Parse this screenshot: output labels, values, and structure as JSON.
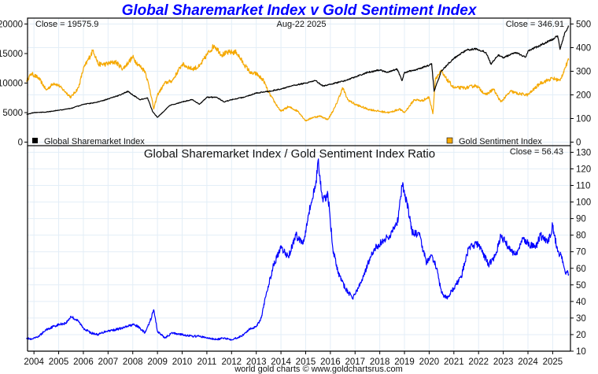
{
  "chart_data": [
    {
      "type": "line",
      "title": "Global Sharemarket Index v Gold Sentiment Index",
      "date_label": "Aug-22  2025",
      "left_close_label": "Close = 19575.9",
      "right_close_label": "Close = 346.91",
      "left_axis": {
        "ticks": [
          "0",
          "5000",
          "10000",
          "15000",
          "20000"
        ],
        "values": [
          0,
          5000,
          10000,
          15000,
          20000
        ],
        "range": [
          -600,
          21000
        ]
      },
      "right_axis": {
        "ticks": [
          "0",
          "100",
          "200",
          "300",
          "400",
          "500"
        ],
        "values": [
          0,
          100,
          200,
          300,
          400,
          500
        ],
        "range": [
          -15,
          525
        ]
      },
      "legend": [
        {
          "name": "Global Sharemarket Index",
          "color": "#000000",
          "placement": "bottom-left"
        },
        {
          "name": "Gold Sentiment Index",
          "color": "#f5a800",
          "placement": "bottom-right"
        }
      ],
      "series": [
        {
          "name": "Global Sharemarket Index",
          "axis": "left",
          "color": "#000000",
          "x": [
            2003.7,
            2004.0,
            2004.5,
            2005.0,
            2005.5,
            2006.0,
            2006.5,
            2007.0,
            2007.5,
            2007.8,
            2008.0,
            2008.3,
            2008.6,
            2008.8,
            2009.0,
            2009.2,
            2009.5,
            2010.0,
            2010.4,
            2010.7,
            2011.0,
            2011.4,
            2011.7,
            2012.0,
            2012.5,
            2013.0,
            2013.5,
            2014.0,
            2014.5,
            2015.0,
            2015.4,
            2015.7,
            2016.0,
            2016.5,
            2017.0,
            2017.5,
            2018.0,
            2018.3,
            2018.7,
            2018.9,
            2019.0,
            2019.5,
            2020.0,
            2020.1,
            2020.2,
            2020.5,
            2021.0,
            2021.5,
            2021.9,
            2022.3,
            2022.5,
            2022.8,
            2023.0,
            2023.5,
            2023.9,
            2024.0,
            2024.5,
            2025.0,
            2025.2,
            2025.3,
            2025.5,
            2025.65
          ],
          "y": [
            4700,
            5000,
            5100,
            5400,
            5700,
            6400,
            6700,
            7300,
            8000,
            8600,
            8000,
            7200,
            7500,
            5200,
            4200,
            5000,
            6200,
            6800,
            7200,
            6400,
            7600,
            7600,
            6800,
            7200,
            7600,
            8300,
            8600,
            9000,
            9600,
            10000,
            10400,
            9500,
            9800,
            10300,
            11000,
            11800,
            12200,
            11800,
            12400,
            10400,
            11800,
            12300,
            13000,
            13300,
            8600,
            12100,
            14200,
            15600,
            15800,
            15200,
            13200,
            14800,
            14300,
            15200,
            14400,
            15400,
            16400,
            17400,
            18000,
            15700,
            18600,
            19575.9
          ]
        },
        {
          "name": "Gold Sentiment Index",
          "axis": "right",
          "color": "#f5a800",
          "x": [
            2003.7,
            2003.9,
            2004.2,
            2004.5,
            2004.8,
            2005.0,
            2005.3,
            2005.5,
            2005.8,
            2006.0,
            2006.4,
            2006.6,
            2006.9,
            2007.3,
            2007.6,
            2008.0,
            2008.2,
            2008.5,
            2008.7,
            2008.85,
            2009.0,
            2009.3,
            2009.6,
            2010.0,
            2010.4,
            2010.7,
            2011.0,
            2011.3,
            2011.6,
            2011.9,
            2012.2,
            2012.5,
            2012.8,
            2013.0,
            2013.3,
            2013.5,
            2013.8,
            2014.0,
            2014.3,
            2014.7,
            2015.0,
            2015.3,
            2015.6,
            2015.9,
            2016.2,
            2016.5,
            2016.7,
            2017.0,
            2017.5,
            2018.0,
            2018.4,
            2018.8,
            2019.0,
            2019.4,
            2019.7,
            2020.0,
            2020.15,
            2020.25,
            2020.5,
            2020.6,
            2021.0,
            2021.5,
            2021.9,
            2022.3,
            2022.6,
            2022.9,
            2023.3,
            2023.6,
            2024.0,
            2024.5,
            2025.0,
            2025.3,
            2025.5,
            2025.65
          ],
          "y": [
            260,
            290,
            270,
            220,
            250,
            240,
            210,
            190,
            230,
            310,
            390,
            330,
            330,
            340,
            310,
            360,
            330,
            300,
            220,
            140,
            200,
            250,
            260,
            330,
            310,
            320,
            370,
            410,
            370,
            380,
            380,
            330,
            290,
            290,
            260,
            210,
            160,
            130,
            150,
            130,
            90,
            105,
            110,
            95,
            150,
            230,
            180,
            160,
            140,
            130,
            125,
            140,
            125,
            180,
            175,
            190,
            120,
            270,
            300,
            280,
            230,
            230,
            240,
            200,
            225,
            170,
            215,
            205,
            200,
            250,
            270,
            260,
            315,
            346.91
          ]
        },
        {
          "name": "Global Sharemarket Index / Gold Sentiment Index Ratio",
          "axis": "ratio",
          "color": "#0000ff",
          "subtitle": "Global Sharemarket Index  /  Gold Sentiment Index Ratio",
          "close_label": "Close = 56.43",
          "ratio_axis": {
            "ticks": [
              "10",
              "20",
              "30",
              "40",
              "50",
              "60",
              "70",
              "80",
              "90",
              "100",
              "110",
              "120",
              "130"
            ],
            "values": [
              10,
              20,
              30,
              40,
              50,
              60,
              70,
              80,
              90,
              100,
              110,
              120,
              130
            ],
            "range": [
              10,
              134
            ]
          },
          "x": [
            2003.7,
            2003.9,
            2004.2,
            2004.5,
            2004.8,
            2005.0,
            2005.3,
            2005.5,
            2005.8,
            2006.0,
            2006.3,
            2006.6,
            2006.9,
            2007.3,
            2007.6,
            2008.0,
            2008.2,
            2008.5,
            2008.7,
            2008.85,
            2009.0,
            2009.3,
            2009.6,
            2010.0,
            2010.4,
            2010.7,
            2011.0,
            2011.4,
            2011.7,
            2012.0,
            2012.4,
            2012.7,
            2013.0,
            2013.2,
            2013.4,
            2013.7,
            2014.0,
            2014.3,
            2014.6,
            2014.9,
            2015.1,
            2015.4,
            2015.5,
            2015.7,
            2015.9,
            2016.1,
            2016.3,
            2016.6,
            2016.9,
            2017.2,
            2017.5,
            2017.8,
            2018.1,
            2018.4,
            2018.6,
            2018.75,
            2018.9,
            2019.1,
            2019.3,
            2019.6,
            2019.9,
            2020.1,
            2020.3,
            2020.5,
            2020.7,
            2021.0,
            2021.3,
            2021.6,
            2021.9,
            2022.1,
            2022.4,
            2022.7,
            2022.9,
            2023.2,
            2023.5,
            2023.8,
            2024.0,
            2024.3,
            2024.5,
            2024.8,
            2025.0,
            2025.2,
            2025.35,
            2025.5,
            2025.65
          ],
          "y": [
            18,
            17,
            19,
            23,
            25,
            26,
            27,
            31,
            28,
            24,
            21,
            20,
            22,
            23,
            24,
            26,
            25,
            21,
            28,
            35,
            22,
            18,
            21,
            20,
            19,
            19,
            18,
            17,
            18,
            17,
            19,
            23,
            25,
            30,
            44,
            62,
            72,
            67,
            80,
            75,
            92,
            110,
            125,
            100,
            105,
            72,
            58,
            48,
            42,
            50,
            62,
            72,
            76,
            80,
            84,
            90,
            110,
            100,
            82,
            80,
            63,
            68,
            60,
            45,
            42,
            48,
            55,
            72,
            75,
            72,
            62,
            68,
            80,
            73,
            68,
            78,
            75,
            72,
            80,
            75,
            86,
            70,
            68,
            58,
            56.43
          ]
        }
      ],
      "x_axis": {
        "ticks": [
          "2004",
          "2005",
          "2006",
          "2007",
          "2008",
          "2009",
          "2010",
          "2011",
          "2012",
          "2013",
          "2014",
          "2015",
          "2016",
          "2017",
          "2018",
          "2019",
          "2020",
          "2021",
          "2022",
          "2023",
          "2024",
          "2025"
        ],
        "values": [
          2004,
          2005,
          2006,
          2007,
          2008,
          2009,
          2010,
          2011,
          2012,
          2013,
          2014,
          2015,
          2016,
          2017,
          2018,
          2019,
          2020,
          2021,
          2022,
          2023,
          2024,
          2025
        ],
        "range": [
          2003.74,
          2025.72
        ]
      },
      "grid": true,
      "footer": "world gold charts © www.goldchartsrus.com"
    }
  ]
}
